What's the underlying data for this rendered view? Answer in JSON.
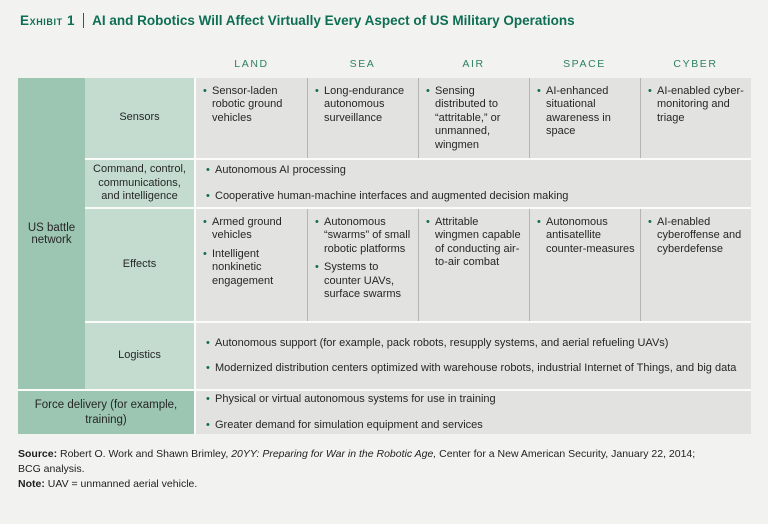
{
  "title": {
    "exhibit_label": "Exhibit 1",
    "text": "AI and Robotics Will Affect Virtually Every Aspect of US Military Operations"
  },
  "columns": [
    "LAND",
    "SEA",
    "AIR",
    "SPACE",
    "CYBER"
  ],
  "sidebar": {
    "label": "US battle network"
  },
  "rows": [
    {
      "label": "Sensors",
      "cells": [
        [
          "Sensor-laden robotic ground vehicles"
        ],
        [
          "Long-endurance autonomous surveillance"
        ],
        [
          "Sensing distributed to “attritable,” or unmanned, wingmen"
        ],
        [
          "AI-enhanced situational awareness in space"
        ],
        [
          "AI-enabled cyber-monitoring and triage"
        ]
      ]
    },
    {
      "label": "Command, control, communications, and intelligence",
      "bullets": [
        "Autonomous AI processing",
        "Cooperative human-machine interfaces and augmented decision making"
      ]
    },
    {
      "label": "Effects",
      "cells": [
        [
          "Armed ground vehicles",
          "Intelligent nonkinetic engagement"
        ],
        [
          "Autonomous “swarms” of small robotic platforms",
          "Systems to counter UAVs, surface swarms"
        ],
        [
          "Attritable wingmen capable of conducting air-to-air combat"
        ],
        [
          "Autonomous antisatellite counter-measures"
        ],
        [
          "AI-enabled cyberoffense and cyberdefense"
        ]
      ]
    },
    {
      "label": "Logistics",
      "bullets": [
        "Autonomous support (for example, pack robots, resupply systems, and aerial refueling UAVs)",
        "Modernized distribution centers optimized with warehouse robots, industrial Internet of Things, and big data"
      ]
    }
  ],
  "force_row": {
    "label": "Force delivery (for example, training)",
    "bullets": [
      "Physical or virtual autonomous systems for use in training",
      "Greater demand for simulation equipment and services"
    ]
  },
  "footer": {
    "source_label": "Source:",
    "source_text_1": " Robert O. Work and Shawn Brimley, ",
    "source_italic": "20YY: Preparing for War in the Robotic Age,",
    "source_text_2": " Center for a New American Security, January 22, 2014;",
    "source_text_3": "BCG analysis.",
    "note_label": "Note:",
    "note_text": " UAV = unmanned aerial vehicle."
  },
  "colors": {
    "title_green": "#0d6e53",
    "column_header_green": "#2f8066",
    "sidebar_green": "#9cc6b2",
    "row_header_green": "#c3dccf",
    "cell_gray": "#e2e2e0",
    "bullet_green": "#0d6e53"
  }
}
